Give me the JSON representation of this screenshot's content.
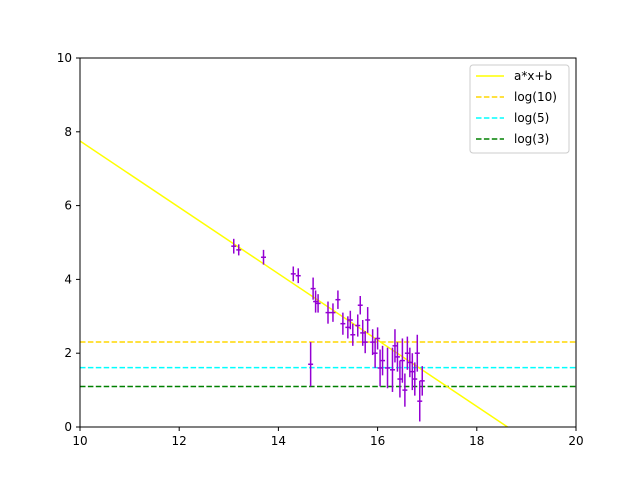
{
  "chart_data": {
    "type": "scatter",
    "xlim": [
      10,
      20
    ],
    "ylim": [
      0,
      10
    ],
    "xticks": [
      "10",
      "12",
      "14",
      "16",
      "18",
      "20"
    ],
    "yticks": [
      "0",
      "2",
      "4",
      "6",
      "8",
      "10"
    ],
    "grid": false,
    "legend_position": "top-right",
    "fit_line": {
      "name": "a*x+b",
      "color": "#ffff00",
      "points": [
        [
          10,
          7.75
        ],
        [
          18.62,
          0
        ]
      ]
    },
    "hlines": [
      {
        "name": "log(10)",
        "y": 2.303,
        "color": "#ffd700"
      },
      {
        "name": "log(5)",
        "y": 1.609,
        "color": "#00ffff"
      },
      {
        "name": "log(3)",
        "y": 1.099,
        "color": "#008000"
      }
    ],
    "errorbar_color": "#9400d3",
    "points": [
      {
        "x": 13.1,
        "y": 4.9,
        "xerr": 0.05,
        "yerr": 0.2
      },
      {
        "x": 13.2,
        "y": 4.8,
        "xerr": 0.05,
        "yerr": 0.15
      },
      {
        "x": 13.7,
        "y": 4.6,
        "xerr": 0.05,
        "yerr": 0.2
      },
      {
        "x": 14.3,
        "y": 4.15,
        "xerr": 0.05,
        "yerr": 0.2
      },
      {
        "x": 14.4,
        "y": 4.1,
        "xerr": 0.05,
        "yerr": 0.2
      },
      {
        "x": 14.65,
        "y": 1.7,
        "xerr": 0.05,
        "yerr": 0.6
      },
      {
        "x": 14.7,
        "y": 3.75,
        "xerr": 0.05,
        "yerr": 0.3
      },
      {
        "x": 14.75,
        "y": 3.4,
        "xerr": 0.05,
        "yerr": 0.3
      },
      {
        "x": 14.8,
        "y": 3.35,
        "xerr": 0.05,
        "yerr": 0.25
      },
      {
        "x": 15.0,
        "y": 3.1,
        "xerr": 0.05,
        "yerr": 0.3
      },
      {
        "x": 15.1,
        "y": 3.1,
        "xerr": 0.05,
        "yerr": 0.25
      },
      {
        "x": 15.2,
        "y": 3.45,
        "xerr": 0.05,
        "yerr": 0.25
      },
      {
        "x": 15.3,
        "y": 2.8,
        "xerr": 0.05,
        "yerr": 0.3
      },
      {
        "x": 15.4,
        "y": 2.7,
        "xerr": 0.05,
        "yerr": 0.3
      },
      {
        "x": 15.45,
        "y": 2.9,
        "xerr": 0.05,
        "yerr": 0.25
      },
      {
        "x": 15.5,
        "y": 2.5,
        "xerr": 0.05,
        "yerr": 0.3
      },
      {
        "x": 15.6,
        "y": 2.75,
        "xerr": 0.05,
        "yerr": 0.3
      },
      {
        "x": 15.65,
        "y": 3.3,
        "xerr": 0.05,
        "yerr": 0.25
      },
      {
        "x": 15.7,
        "y": 2.55,
        "xerr": 0.05,
        "yerr": 0.35
      },
      {
        "x": 15.75,
        "y": 2.3,
        "xerr": 0.05,
        "yerr": 0.3
      },
      {
        "x": 15.8,
        "y": 2.9,
        "xerr": 0.05,
        "yerr": 0.35
      },
      {
        "x": 15.9,
        "y": 2.3,
        "xerr": 0.05,
        "yerr": 0.35
      },
      {
        "x": 15.95,
        "y": 2.0,
        "xerr": 0.05,
        "yerr": 0.4
      },
      {
        "x": 16.0,
        "y": 2.4,
        "xerr": 0.05,
        "yerr": 0.3
      },
      {
        "x": 16.05,
        "y": 1.6,
        "xerr": 0.05,
        "yerr": 0.5
      },
      {
        "x": 16.1,
        "y": 1.8,
        "xerr": 0.05,
        "yerr": 0.4
      },
      {
        "x": 16.2,
        "y": 1.6,
        "xerr": 0.05,
        "yerr": 0.55
      },
      {
        "x": 16.3,
        "y": 1.55,
        "xerr": 0.05,
        "yerr": 0.6
      },
      {
        "x": 16.35,
        "y": 2.2,
        "xerr": 0.05,
        "yerr": 0.45
      },
      {
        "x": 16.4,
        "y": 1.9,
        "xerr": 0.05,
        "yerr": 0.4
      },
      {
        "x": 16.45,
        "y": 1.3,
        "xerr": 0.05,
        "yerr": 0.5
      },
      {
        "x": 16.5,
        "y": 1.8,
        "xerr": 0.05,
        "yerr": 0.6
      },
      {
        "x": 16.55,
        "y": 1.0,
        "xerr": 0.05,
        "yerr": 0.45
      },
      {
        "x": 16.6,
        "y": 2.0,
        "xerr": 0.05,
        "yerr": 0.45
      },
      {
        "x": 16.65,
        "y": 1.75,
        "xerr": 0.05,
        "yerr": 0.4
      },
      {
        "x": 16.7,
        "y": 1.5,
        "xerr": 0.05,
        "yerr": 0.5
      },
      {
        "x": 16.75,
        "y": 1.3,
        "xerr": 0.05,
        "yerr": 0.45
      },
      {
        "x": 16.8,
        "y": 2.0,
        "xerr": 0.05,
        "yerr": 0.5
      },
      {
        "x": 16.85,
        "y": 0.7,
        "xerr": 0.05,
        "yerr": 0.55
      },
      {
        "x": 16.9,
        "y": 1.25,
        "xerr": 0.05,
        "yerr": 0.4
      }
    ]
  }
}
